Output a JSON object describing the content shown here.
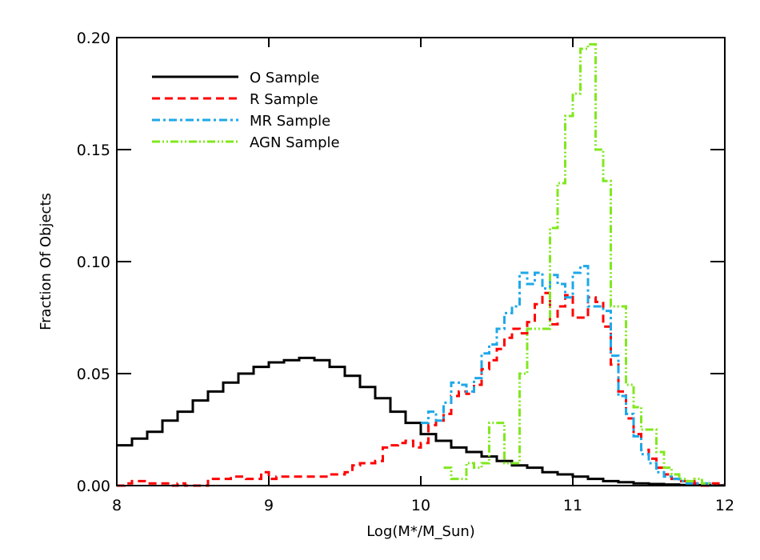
{
  "chart_data": {
    "type": "line",
    "step": true,
    "xlabel": "Log(M*/M_Sun)",
    "ylabel": "Fraction Of Objects",
    "xlim": [
      8,
      12
    ],
    "ylim": [
      0,
      0.2
    ],
    "xticks": [
      8,
      9,
      10,
      11,
      12
    ],
    "xtick_labels": [
      "8",
      "9",
      "10",
      "11",
      "12"
    ],
    "yticks": [
      0,
      0.05,
      0.1,
      0.15,
      0.2
    ],
    "ytick_labels": [
      "0.00",
      "0.05",
      "0.10",
      "0.15",
      "0.20"
    ],
    "legend_position": "top-left",
    "series": [
      {
        "name": "O Sample",
        "color": "#000000",
        "dash": "solid",
        "x": [
          8.0,
          8.1,
          8.2,
          8.3,
          8.4,
          8.5,
          8.6,
          8.7,
          8.8,
          8.9,
          9.0,
          9.1,
          9.2,
          9.3,
          9.4,
          9.5,
          9.6,
          9.7,
          9.8,
          9.9,
          10.0,
          10.1,
          10.2,
          10.3,
          10.4,
          10.5,
          10.6,
          10.7,
          10.8,
          10.9,
          11.0,
          11.1,
          11.2,
          11.3,
          11.4,
          11.5,
          11.6,
          11.7,
          11.8,
          11.9,
          12.0
        ],
        "y": [
          0.018,
          0.021,
          0.024,
          0.029,
          0.033,
          0.038,
          0.042,
          0.046,
          0.05,
          0.053,
          0.055,
          0.056,
          0.057,
          0.056,
          0.053,
          0.049,
          0.044,
          0.039,
          0.033,
          0.028,
          0.023,
          0.02,
          0.017,
          0.015,
          0.013,
          0.011,
          0.009,
          0.008,
          0.006,
          0.005,
          0.004,
          0.003,
          0.002,
          0.0015,
          0.001,
          0.0007,
          0.0005,
          0.0003,
          0.0002,
          0.0001,
          0.0
        ]
      },
      {
        "name": "R Sample",
        "color": "#ff0000",
        "dash": "dashed",
        "x": [
          8.0,
          8.05,
          8.1,
          8.15,
          8.2,
          8.25,
          8.3,
          8.35,
          8.4,
          8.45,
          8.5,
          8.55,
          8.6,
          8.65,
          8.7,
          8.75,
          8.8,
          8.85,
          8.9,
          8.95,
          9.0,
          9.05,
          9.1,
          9.15,
          9.2,
          9.25,
          9.3,
          9.35,
          9.4,
          9.45,
          9.5,
          9.55,
          9.6,
          9.65,
          9.7,
          9.75,
          9.8,
          9.85,
          9.9,
          9.95,
          10.0,
          10.05,
          10.1,
          10.15,
          10.2,
          10.25,
          10.3,
          10.35,
          10.4,
          10.45,
          10.5,
          10.55,
          10.6,
          10.65,
          10.7,
          10.75,
          10.8,
          10.85,
          10.9,
          10.95,
          11.0,
          11.05,
          11.1,
          11.15,
          11.2,
          11.25,
          11.3,
          11.35,
          11.4,
          11.45,
          11.5,
          11.55,
          11.6,
          11.65,
          11.7,
          11.75,
          11.8,
          11.85,
          11.9,
          12.0
        ],
        "y": [
          0.0,
          0.001,
          0.002,
          0.002,
          0.001,
          0.001,
          0.001,
          0.0,
          0.001,
          0.0,
          0.0,
          0.0,
          0.003,
          0.003,
          0.003,
          0.004,
          0.004,
          0.003,
          0.003,
          0.006,
          0.003,
          0.004,
          0.004,
          0.004,
          0.004,
          0.004,
          0.004,
          0.004,
          0.005,
          0.005,
          0.006,
          0.009,
          0.01,
          0.01,
          0.011,
          0.017,
          0.018,
          0.019,
          0.02,
          0.017,
          0.019,
          0.027,
          0.029,
          0.032,
          0.04,
          0.042,
          0.041,
          0.045,
          0.052,
          0.056,
          0.061,
          0.066,
          0.07,
          0.068,
          0.073,
          0.081,
          0.086,
          0.072,
          0.08,
          0.085,
          0.075,
          0.075,
          0.084,
          0.082,
          0.071,
          0.054,
          0.042,
          0.03,
          0.023,
          0.016,
          0.012,
          0.008,
          0.005,
          0.003,
          0.002,
          0.002,
          0.001,
          0.0,
          0.001,
          0.0
        ]
      },
      {
        "name": "MR Sample",
        "color": "#1ea8e8",
        "dash": "dashdot",
        "x": [
          10.0,
          10.05,
          10.1,
          10.15,
          10.2,
          10.25,
          10.3,
          10.35,
          10.4,
          10.45,
          10.5,
          10.55,
          10.6,
          10.65,
          10.7,
          10.75,
          10.8,
          10.85,
          10.9,
          10.95,
          11.0,
          11.05,
          11.1,
          11.15,
          11.2,
          11.25,
          11.3,
          11.35,
          11.4,
          11.45,
          11.5,
          11.55,
          11.6,
          11.65,
          11.7,
          11.75,
          11.8,
          11.85,
          11.9,
          11.95
        ],
        "y": [
          0.028,
          0.033,
          0.029,
          0.037,
          0.046,
          0.045,
          0.042,
          0.048,
          0.059,
          0.063,
          0.07,
          0.077,
          0.08,
          0.095,
          0.09,
          0.095,
          0.088,
          0.094,
          0.09,
          0.084,
          0.095,
          0.098,
          0.08,
          0.08,
          0.078,
          0.058,
          0.04,
          0.032,
          0.022,
          0.014,
          0.01,
          0.006,
          0.004,
          0.003,
          0.002,
          0.001,
          0.001,
          0.001,
          0.0,
          0.0
        ]
      },
      {
        "name": "AGN Sample",
        "color": "#80e81e",
        "dash": "dashdotdot",
        "x": [
          10.15,
          10.2,
          10.25,
          10.3,
          10.35,
          10.4,
          10.45,
          10.5,
          10.55,
          10.6,
          10.65,
          10.7,
          10.75,
          10.8,
          10.85,
          10.9,
          10.95,
          11.0,
          11.05,
          11.1,
          11.15,
          11.2,
          11.25,
          11.3,
          11.35,
          11.4,
          11.45,
          11.5,
          11.55,
          11.6,
          11.65,
          11.7,
          11.75,
          11.8,
          11.85,
          11.9
        ],
        "y": [
          0.008,
          0.003,
          0.003,
          0.01,
          0.008,
          0.01,
          0.028,
          0.028,
          0.01,
          0.01,
          0.05,
          0.07,
          0.07,
          0.07,
          0.115,
          0.135,
          0.165,
          0.175,
          0.195,
          0.197,
          0.15,
          0.136,
          0.08,
          0.08,
          0.045,
          0.035,
          0.025,
          0.025,
          0.015,
          0.008,
          0.005,
          0.003,
          0.002,
          0.003,
          0.001,
          0.0
        ]
      }
    ]
  }
}
